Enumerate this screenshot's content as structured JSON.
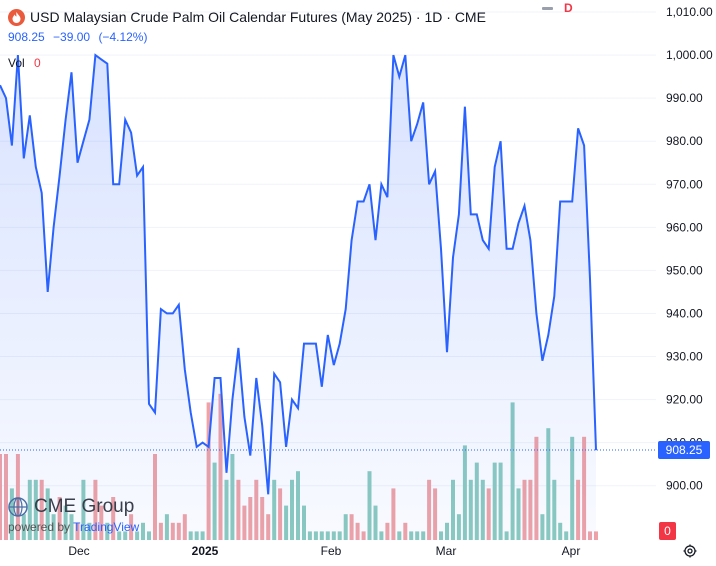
{
  "header": {
    "title": "USD Malaysian Crude Palm Oil Calendar Futures (May 2025) · 1D · CME",
    "badge": "D",
    "price": "908.25",
    "change": "−39.00",
    "change_pct": "(−4.12%)",
    "vol_label": "Vol",
    "vol_value": "0"
  },
  "price_tag": "908.25",
  "vol_tag": "0",
  "logo": {
    "name": "CME Group",
    "powered_prefix": "powered by",
    "powered_brand": "TradingView"
  },
  "colors": {
    "line": "#2962ff",
    "up_volume": "#8ccbbf",
    "down_volume": "#f0a3a6",
    "tag_blue": "#2962ff",
    "tag_red": "#f23645"
  },
  "chart_data": {
    "type": "area",
    "y_axis": {
      "min": 900,
      "max": 1010,
      "ticks": [
        "900.00",
        "910.00",
        "920.00",
        "930.00",
        "940.00",
        "950.00",
        "960.00",
        "970.00",
        "980.00",
        "990.00",
        "1,000.00",
        "1,010.00"
      ]
    },
    "x_ticks": [
      "Dec",
      "2025",
      "Feb",
      "Mar",
      "Apr"
    ],
    "series": [
      {
        "values": [
          993,
          990,
          979,
          1000,
          976,
          986,
          974,
          968,
          945,
          960,
          972,
          985,
          996,
          975,
          980,
          985,
          1000,
          999,
          998,
          970,
          970,
          985,
          982,
          972,
          974,
          919,
          917,
          941,
          940,
          940,
          942,
          927,
          917,
          909,
          910,
          909,
          925,
          925,
          903,
          920,
          932,
          916,
          907,
          925,
          914,
          898,
          926,
          924,
          909,
          920,
          918,
          933,
          933,
          933,
          923,
          935,
          928,
          933,
          941,
          957,
          966,
          966,
          970,
          957,
          970,
          967,
          1000,
          995,
          1000,
          980,
          984,
          989,
          970,
          973,
          955,
          931,
          953,
          963,
          988,
          963,
          963,
          957,
          955,
          974,
          980,
          955,
          955,
          961,
          965,
          957,
          940,
          929,
          935,
          944,
          966,
          966,
          966,
          983,
          979,
          948,
          908.25
        ]
      }
    ],
    "volume": [
      [
        10,
        "d"
      ],
      [
        10,
        "d"
      ],
      [
        6,
        "u"
      ],
      [
        10,
        "d"
      ],
      [
        3,
        "u"
      ],
      [
        7,
        "u"
      ],
      [
        7,
        "u"
      ],
      [
        7,
        "d"
      ],
      [
        6,
        "u"
      ],
      [
        3,
        "u"
      ],
      [
        5,
        "d"
      ],
      [
        4,
        "u"
      ],
      [
        3,
        "u"
      ],
      [
        2,
        "d"
      ],
      [
        7,
        "u"
      ],
      [
        2,
        "u"
      ],
      [
        7,
        "d"
      ],
      [
        4,
        "d"
      ],
      [
        2,
        "u"
      ],
      [
        5,
        "d"
      ],
      [
        1,
        "u"
      ],
      [
        1,
        "u"
      ],
      [
        3,
        "d"
      ],
      [
        1,
        "u"
      ],
      [
        2,
        "u"
      ],
      [
        1,
        "u"
      ],
      [
        10,
        "d"
      ],
      [
        2,
        "d"
      ],
      [
        3,
        "u"
      ],
      [
        2,
        "d"
      ],
      [
        2,
        "d"
      ],
      [
        3,
        "d"
      ],
      [
        1,
        "u"
      ],
      [
        1,
        "u"
      ],
      [
        1,
        "u"
      ],
      [
        16,
        "d"
      ],
      [
        9,
        "u"
      ],
      [
        17,
        "d"
      ],
      [
        7,
        "u"
      ],
      [
        10,
        "u"
      ],
      [
        7,
        "d"
      ],
      [
        4,
        "d"
      ],
      [
        5,
        "d"
      ],
      [
        7,
        "d"
      ],
      [
        5,
        "d"
      ],
      [
        3,
        "d"
      ],
      [
        7,
        "u"
      ],
      [
        6,
        "d"
      ],
      [
        4,
        "u"
      ],
      [
        7,
        "u"
      ],
      [
        8,
        "u"
      ],
      [
        4,
        "u"
      ],
      [
        1,
        "u"
      ],
      [
        1,
        "u"
      ],
      [
        1,
        "u"
      ],
      [
        1,
        "u"
      ],
      [
        1,
        "u"
      ],
      [
        1,
        "u"
      ],
      [
        3,
        "u"
      ],
      [
        3,
        "d"
      ],
      [
        2,
        "d"
      ],
      [
        1,
        "d"
      ],
      [
        8,
        "u"
      ],
      [
        4,
        "u"
      ],
      [
        1,
        "u"
      ],
      [
        2,
        "d"
      ],
      [
        6,
        "d"
      ],
      [
        1,
        "u"
      ],
      [
        2,
        "d"
      ],
      [
        1,
        "u"
      ],
      [
        1,
        "u"
      ],
      [
        1,
        "u"
      ],
      [
        7,
        "d"
      ],
      [
        6,
        "d"
      ],
      [
        1,
        "u"
      ],
      [
        2,
        "u"
      ],
      [
        7,
        "u"
      ],
      [
        3,
        "u"
      ],
      [
        11,
        "u"
      ],
      [
        7,
        "u"
      ],
      [
        9,
        "u"
      ],
      [
        7,
        "u"
      ],
      [
        6,
        "d"
      ],
      [
        9,
        "u"
      ],
      [
        9,
        "u"
      ],
      [
        1,
        "u"
      ],
      [
        16,
        "u"
      ],
      [
        6,
        "u"
      ],
      [
        7,
        "d"
      ],
      [
        7,
        "d"
      ],
      [
        12,
        "d"
      ],
      [
        3,
        "u"
      ],
      [
        13,
        "u"
      ],
      [
        7,
        "u"
      ],
      [
        2,
        "u"
      ],
      [
        1,
        "u"
      ],
      [
        12,
        "u"
      ],
      [
        7,
        "d"
      ],
      [
        12,
        "d"
      ],
      [
        1,
        "d"
      ],
      [
        1,
        "d"
      ]
    ]
  }
}
